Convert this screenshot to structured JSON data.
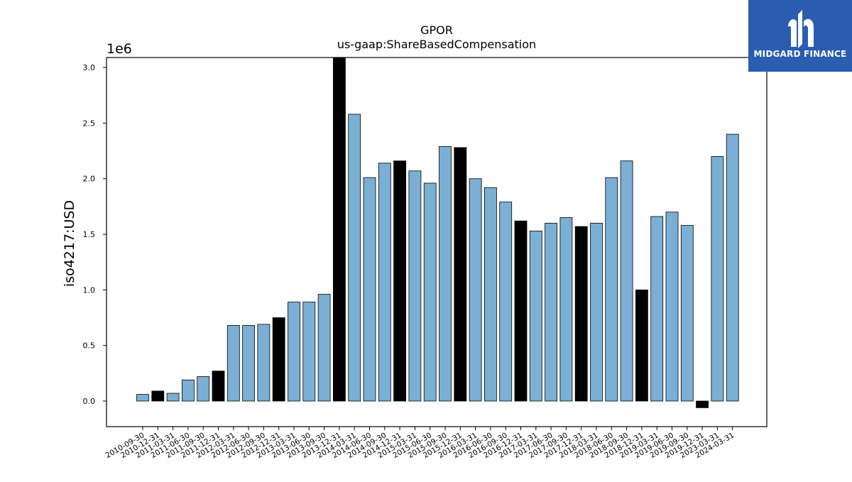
{
  "logo": {
    "text": "MIDGARD FINANCE"
  },
  "colors": {
    "bar_blue": "#7bafd4",
    "bar_black": "#000000",
    "logo_bg": "#2a5db0"
  },
  "chart_data": {
    "type": "bar",
    "title": "GPOR",
    "subtitle": "us-gaap:ShareBasedCompensation",
    "ylabel": "iso4217:USD",
    "scale_label": "1e6",
    "ylim": [
      -0.23,
      3.09
    ],
    "yticks": [
      0.0,
      0.5,
      1.0,
      1.5,
      2.0,
      2.5,
      3.0
    ],
    "ytick_labels": [
      "0.0",
      "0.5",
      "1.0",
      "1.5",
      "2.0",
      "2.5",
      "3.0"
    ],
    "grid": false,
    "categories": [
      "2010-09-30",
      "2010-12-31",
      "2011-03-31",
      "2011-06-30",
      "2011-09-30",
      "2011-12-31",
      "2012-03-31",
      "2012-06-30",
      "2012-09-30",
      "2012-12-31",
      "2013-03-31",
      "2013-06-30",
      "2013-09-30",
      "2013-12-31",
      "2014-03-31",
      "2014-06-30",
      "2014-09-30",
      "2014-12-31",
      "2015-03-31",
      "2015-06-30",
      "2015-09-30",
      "2015-12-31",
      "2016-03-31",
      "2016-06-30",
      "2016-09-30",
      "2016-12-31",
      "2017-03-31",
      "2017-06-30",
      "2017-09-30",
      "2017-12-31",
      "2018-03-31",
      "2018-06-30",
      "2018-09-30",
      "2018-12-31",
      "2019-03-31",
      "2019-06-30",
      "2019-09-30",
      "2019-12-31",
      "2023-03-31",
      "2024-03-31"
    ],
    "values": [
      0.06,
      0.09,
      0.07,
      0.19,
      0.22,
      0.27,
      0.68,
      0.68,
      0.69,
      0.75,
      0.89,
      0.89,
      0.96,
      3.09,
      2.58,
      2.01,
      2.14,
      2.16,
      2.07,
      1.96,
      2.29,
      2.28,
      2.0,
      1.92,
      1.79,
      1.62,
      1.53,
      1.6,
      1.65,
      1.57,
      1.6,
      2.01,
      2.16,
      1.0,
      1.66,
      1.7,
      1.58,
      -0.06,
      2.2,
      2.4
    ],
    "highlight": [
      false,
      true,
      false,
      false,
      false,
      true,
      false,
      false,
      false,
      true,
      false,
      false,
      false,
      true,
      false,
      false,
      false,
      true,
      false,
      false,
      false,
      true,
      false,
      false,
      false,
      true,
      false,
      false,
      false,
      true,
      false,
      false,
      false,
      true,
      false,
      false,
      false,
      true,
      false,
      false
    ]
  }
}
